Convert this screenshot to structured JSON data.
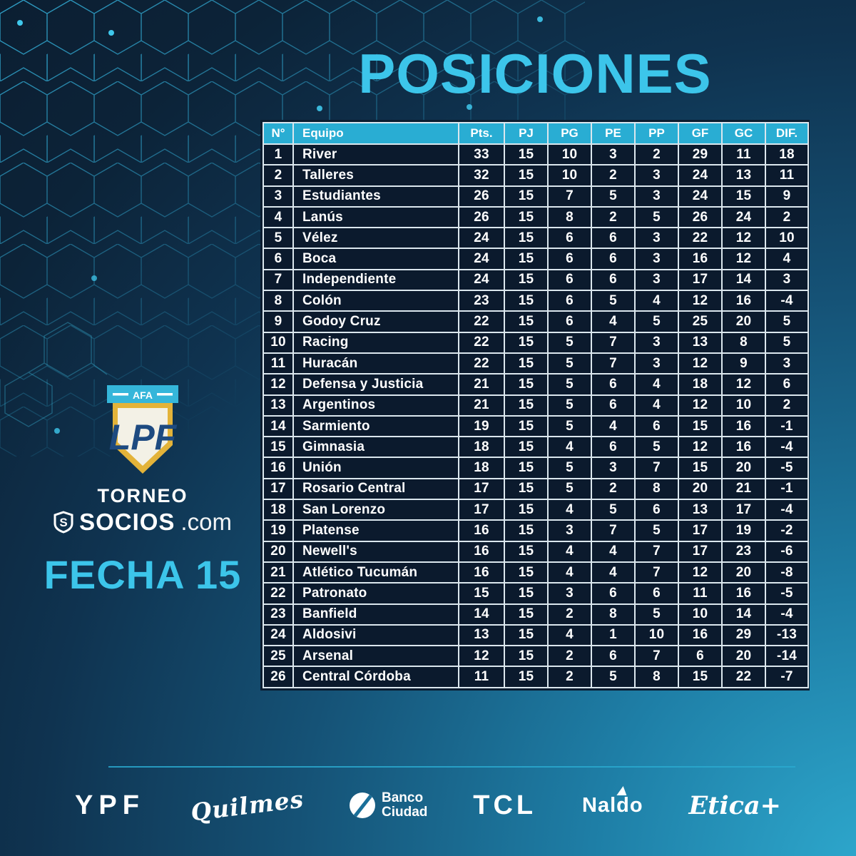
{
  "page_title": "POSICIONES",
  "branding": {
    "afa_label": "AFA",
    "lpf_monogram": "LPF",
    "torneo_label": "TORNEO",
    "socios_label": "SOCIOS",
    "socios_suffix": ".com",
    "fecha_label": "FECHA 15"
  },
  "chart_data": {
    "type": "table",
    "title": "POSICIONES",
    "columns": [
      "N°",
      "Equipo",
      "Pts.",
      "PJ",
      "PG",
      "PE",
      "PP",
      "GF",
      "GC",
      "DIF."
    ],
    "rows": [
      [
        "1",
        "River",
        "33",
        "15",
        "10",
        "3",
        "2",
        "29",
        "11",
        "18"
      ],
      [
        "2",
        "Talleres",
        "32",
        "15",
        "10",
        "2",
        "3",
        "24",
        "13",
        "11"
      ],
      [
        "3",
        "Estudiantes",
        "26",
        "15",
        "7",
        "5",
        "3",
        "24",
        "15",
        "9"
      ],
      [
        "4",
        "Lanús",
        "26",
        "15",
        "8",
        "2",
        "5",
        "26",
        "24",
        "2"
      ],
      [
        "5",
        "Vélez",
        "24",
        "15",
        "6",
        "6",
        "3",
        "22",
        "12",
        "10"
      ],
      [
        "6",
        "Boca",
        "24",
        "15",
        "6",
        "6",
        "3",
        "16",
        "12",
        "4"
      ],
      [
        "7",
        "Independiente",
        "24",
        "15",
        "6",
        "6",
        "3",
        "17",
        "14",
        "3"
      ],
      [
        "8",
        "Colón",
        "23",
        "15",
        "6",
        "5",
        "4",
        "12",
        "16",
        "-4"
      ],
      [
        "9",
        "Godoy Cruz",
        "22",
        "15",
        "6",
        "4",
        "5",
        "25",
        "20",
        "5"
      ],
      [
        "10",
        "Racing",
        "22",
        "15",
        "5",
        "7",
        "3",
        "13",
        "8",
        "5"
      ],
      [
        "11",
        "Huracán",
        "22",
        "15",
        "5",
        "7",
        "3",
        "12",
        "9",
        "3"
      ],
      [
        "12",
        "Defensa y Justicia",
        "21",
        "15",
        "5",
        "6",
        "4",
        "18",
        "12",
        "6"
      ],
      [
        "13",
        "Argentinos",
        "21",
        "15",
        "5",
        "6",
        "4",
        "12",
        "10",
        "2"
      ],
      [
        "14",
        "Sarmiento",
        "19",
        "15",
        "5",
        "4",
        "6",
        "15",
        "16",
        "-1"
      ],
      [
        "15",
        "Gimnasia",
        "18",
        "15",
        "4",
        "6",
        "5",
        "12",
        "16",
        "-4"
      ],
      [
        "16",
        "Unión",
        "18",
        "15",
        "5",
        "3",
        "7",
        "15",
        "20",
        "-5"
      ],
      [
        "17",
        "Rosario Central",
        "17",
        "15",
        "5",
        "2",
        "8",
        "20",
        "21",
        "-1"
      ],
      [
        "18",
        "San Lorenzo",
        "17",
        "15",
        "4",
        "5",
        "6",
        "13",
        "17",
        "-4"
      ],
      [
        "19",
        "Platense",
        "16",
        "15",
        "3",
        "7",
        "5",
        "17",
        "19",
        "-2"
      ],
      [
        "20",
        "Newell's",
        "16",
        "15",
        "4",
        "4",
        "7",
        "17",
        "23",
        "-6"
      ],
      [
        "21",
        "Atlético Tucumán",
        "16",
        "15",
        "4",
        "4",
        "7",
        "12",
        "20",
        "-8"
      ],
      [
        "22",
        "Patronato",
        "15",
        "15",
        "3",
        "6",
        "6",
        "11",
        "16",
        "-5"
      ],
      [
        "23",
        "Banfield",
        "14",
        "15",
        "2",
        "8",
        "5",
        "10",
        "14",
        "-4"
      ],
      [
        "24",
        "Aldosivi",
        "13",
        "15",
        "4",
        "1",
        "10",
        "16",
        "29",
        "-13"
      ],
      [
        "25",
        "Arsenal",
        "12",
        "15",
        "2",
        "6",
        "7",
        "6",
        "20",
        "-14"
      ],
      [
        "26",
        "Central Córdoba",
        "11",
        "15",
        "2",
        "5",
        "8",
        "15",
        "22",
        "-7"
      ]
    ]
  },
  "sponsors": [
    {
      "name": "ypf",
      "label": "YPF"
    },
    {
      "name": "quilmes",
      "label": "Quilmes"
    },
    {
      "name": "banco-ciudad",
      "label_line1": "Banco",
      "label_line2": "Ciudad"
    },
    {
      "name": "tcl",
      "label": "TCL"
    },
    {
      "name": "naldo",
      "label": "Naldo"
    },
    {
      "name": "etica",
      "label": "Etica+"
    }
  ],
  "colors": {
    "accent_cyan": "#3CC5EA",
    "header_cyan": "#29ADD3",
    "cell_border": "#DBE7EE",
    "background_dark": "#0B1D30",
    "background_teal": "#2EA9CE",
    "shield_gold": "#E3B339",
    "monogram_navy": "#1D4A80"
  }
}
